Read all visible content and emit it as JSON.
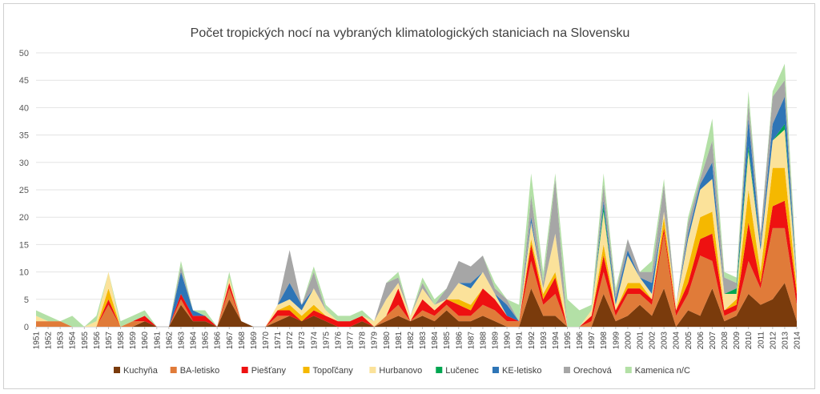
{
  "chart_data": {
    "type": "area",
    "stacked": true,
    "title": "Počet tropických nocí na vybraných klimatologických staniciach na Slovensku",
    "xlabel": "",
    "ylabel": "",
    "ylim": [
      0,
      50
    ],
    "yticks": [
      0,
      5,
      10,
      15,
      20,
      25,
      30,
      35,
      40,
      45,
      50
    ],
    "grid": true,
    "legend_position": "bottom",
    "x": [
      1951,
      1952,
      1953,
      1954,
      1955,
      1956,
      1957,
      1958,
      1959,
      1960,
      1961,
      1962,
      1963,
      1964,
      1965,
      1966,
      1967,
      1968,
      1969,
      1970,
      1971,
      1972,
      1973,
      1974,
      1975,
      1976,
      1977,
      1978,
      1979,
      1980,
      1981,
      1982,
      1983,
      1984,
      1985,
      1986,
      1987,
      1988,
      1989,
      1990,
      1991,
      1992,
      1993,
      1994,
      1995,
      1996,
      1997,
      1998,
      1999,
      2000,
      2001,
      2002,
      2003,
      2004,
      2005,
      2006,
      2007,
      2008,
      2009,
      2010,
      2011,
      2012,
      2013,
      2014
    ],
    "series": [
      {
        "name": "Kuchyňa",
        "color": "#7a3b0c",
        "values": [
          0,
          0,
          0,
          0,
          0,
          0,
          0,
          0,
          0,
          1,
          0,
          0,
          4,
          1,
          1,
          0,
          5,
          1,
          0,
          0,
          1,
          2,
          1,
          2,
          1,
          0,
          0,
          1,
          0,
          1,
          2,
          1,
          2,
          1,
          3,
          1,
          1,
          2,
          1,
          0,
          0,
          7,
          2,
          2,
          0,
          0,
          0,
          6,
          1,
          2,
          4,
          2,
          7,
          0,
          3,
          2,
          7,
          1,
          2,
          6,
          4,
          5,
          8,
          1
        ]
      },
      {
        "name": "BA-letisko",
        "color": "#e07b39",
        "values": [
          1,
          1,
          1,
          0,
          0,
          0,
          4,
          0,
          1,
          0,
          0,
          0,
          1,
          0,
          0,
          0,
          2,
          0,
          0,
          0,
          1,
          0,
          0,
          0,
          0,
          0,
          0,
          0,
          0,
          1,
          2,
          0,
          1,
          1,
          1,
          1,
          1,
          2,
          2,
          1,
          1,
          5,
          2,
          4,
          0,
          0,
          1,
          4,
          1,
          4,
          2,
          2,
          10,
          2,
          3,
          11,
          5,
          1,
          1,
          6,
          3,
          13,
          10,
          3
        ]
      },
      {
        "name": "Piešťany",
        "color": "#ee1111",
        "values": [
          0,
          0,
          0,
          0,
          0,
          0,
          1,
          0,
          0,
          1,
          0,
          0,
          1,
          1,
          1,
          0,
          1,
          0,
          0,
          0,
          1,
          1,
          0,
          1,
          1,
          1,
          1,
          1,
          0,
          0,
          3,
          0,
          2,
          1,
          1,
          2,
          1,
          3,
          2,
          1,
          0,
          3,
          1,
          3,
          0,
          0,
          1,
          3,
          1,
          1,
          1,
          1,
          1,
          1,
          2,
          3,
          5,
          1,
          1,
          7,
          1,
          4,
          5,
          2
        ]
      },
      {
        "name": "Topoľčany",
        "color": "#f5b800",
        "values": [
          0,
          0,
          0,
          0,
          0,
          0,
          2,
          0,
          0,
          0,
          0,
          0,
          0,
          0,
          0,
          0,
          0,
          0,
          0,
          0,
          0,
          1,
          1,
          1,
          0,
          0,
          0,
          0,
          0,
          0,
          0,
          0,
          0,
          0,
          0,
          1,
          1,
          0,
          0,
          0,
          0,
          1,
          1,
          1,
          0,
          0,
          0,
          2,
          0,
          1,
          1,
          0,
          2,
          0,
          3,
          4,
          4,
          0,
          1,
          6,
          2,
          7,
          6,
          1
        ]
      },
      {
        "name": "Hurbanovo",
        "color": "#fbe29a",
        "values": [
          1,
          0,
          0,
          0,
          0,
          1,
          3,
          0,
          0,
          0,
          0,
          0,
          0,
          0,
          0,
          0,
          1,
          0,
          0,
          0,
          1,
          1,
          1,
          3,
          1,
          0,
          0,
          0,
          1,
          3,
          1,
          1,
          2,
          1,
          0,
          3,
          3,
          3,
          1,
          0,
          0,
          3,
          1,
          7,
          0,
          0,
          1,
          6,
          1,
          5,
          1,
          1,
          1,
          1,
          5,
          5,
          6,
          3,
          1,
          7,
          4,
          5,
          7,
          1
        ]
      },
      {
        "name": "Lučenec",
        "color": "#00a651",
        "values": [
          0,
          0,
          0,
          0,
          0,
          0,
          0,
          0,
          0,
          0,
          0,
          0,
          0,
          0,
          0,
          0,
          0,
          0,
          0,
          0,
          0,
          0,
          0,
          0,
          0,
          0,
          0,
          0,
          0,
          0,
          0,
          0,
          0,
          0,
          0,
          0,
          0,
          0,
          0,
          0,
          0,
          0,
          0,
          0,
          0,
          0,
          0,
          1,
          0,
          0,
          0,
          0,
          0,
          0,
          0,
          0,
          0,
          0,
          1,
          1,
          0,
          0,
          1,
          0
        ]
      },
      {
        "name": "KE-letisko",
        "color": "#2e75b6",
        "values": [
          0,
          0,
          0,
          0,
          0,
          0,
          0,
          0,
          0,
          0,
          0,
          0,
          4,
          1,
          0,
          0,
          0,
          0,
          0,
          0,
          0,
          3,
          1,
          0,
          0,
          0,
          0,
          0,
          0,
          0,
          0,
          0,
          0,
          0,
          0,
          0,
          1,
          0,
          0,
          2,
          0,
          1,
          0,
          0,
          0,
          0,
          0,
          1,
          1,
          1,
          0,
          2,
          0,
          0,
          1,
          1,
          3,
          0,
          0,
          5,
          1,
          3,
          5,
          0
        ]
      },
      {
        "name": "Orechová",
        "color": "#a6a6a6",
        "values": [
          0,
          0,
          0,
          0,
          0,
          0,
          0,
          0,
          0,
          0,
          0,
          0,
          1,
          0,
          0,
          0,
          0,
          0,
          0,
          0,
          0,
          6,
          0,
          3,
          0,
          0,
          0,
          0,
          0,
          3,
          1,
          0,
          1,
          0,
          2,
          4,
          3,
          3,
          1,
          1,
          0,
          4,
          1,
          10,
          0,
          0,
          0,
          3,
          1,
          2,
          1,
          2,
          5,
          0,
          2,
          1,
          4,
          3,
          1,
          3,
          2,
          5,
          3,
          1
        ]
      },
      {
        "name": "Kamenica n/C",
        "color": "#b3e0a6",
        "values": [
          1,
          1,
          0,
          2,
          0,
          1,
          0,
          1,
          1,
          1,
          0,
          0,
          1,
          0,
          1,
          0,
          1,
          0,
          0,
          0,
          0,
          0,
          0,
          1,
          1,
          1,
          1,
          1,
          0,
          0,
          1,
          0,
          1,
          1,
          0,
          0,
          0,
          0,
          1,
          0,
          3,
          4,
          2,
          1,
          5,
          3,
          1,
          2,
          1,
          0,
          0,
          2,
          1,
          0,
          1,
          1,
          4,
          1,
          1,
          2,
          0,
          1,
          3,
          1
        ]
      }
    ]
  }
}
